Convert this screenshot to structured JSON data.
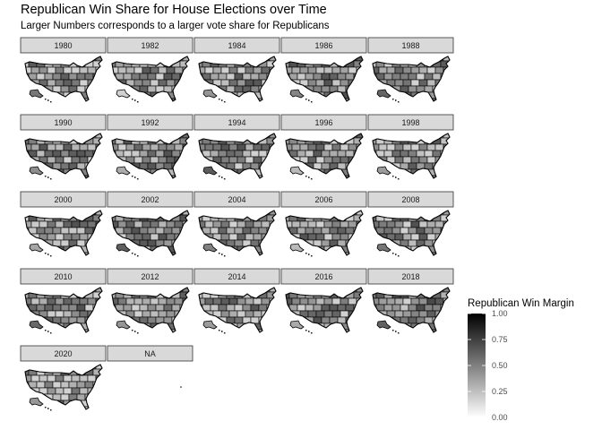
{
  "chart_data": {
    "type": "heatmap",
    "title": "Republican Win Share for House Elections over Time",
    "subtitle": "Larger Numbers corresponds to a larger vote share for Republicans",
    "facets": [
      "1980",
      "1982",
      "1984",
      "1986",
      "1988",
      "1990",
      "1992",
      "1994",
      "1996",
      "1998",
      "2000",
      "2002",
      "2004",
      "2006",
      "2008",
      "2010",
      "2012",
      "2014",
      "2016",
      "2018",
      "2020",
      "NA"
    ],
    "legend": {
      "title": "Republican Win Margin",
      "placement": "right",
      "scale": "grey",
      "range": [
        0,
        1
      ],
      "ticks": [
        "1.00",
        "0.75",
        "0.50",
        "0.25",
        "0.00"
      ],
      "tick_values": [
        1.0,
        0.75,
        0.5,
        0.25,
        0.0
      ]
    },
    "colors": {
      "low": "#ffffff",
      "high": "#000000",
      "strip_bg": "#d9d9d9",
      "strip_border": "#333333"
    }
  }
}
